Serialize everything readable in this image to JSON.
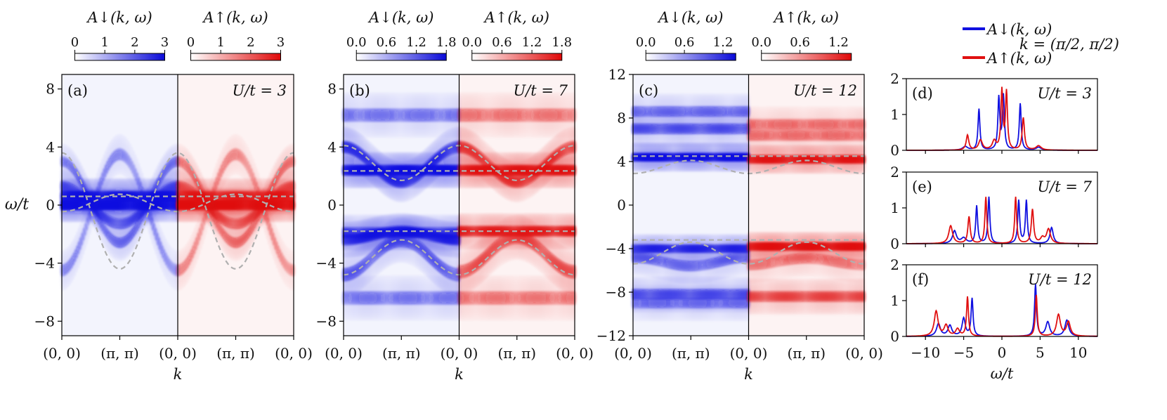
{
  "figure": {
    "ylabel": "ω/t",
    "legend_down": "A↓(k, ω)",
    "legend_up": "A↑(k, ω)",
    "k_note": "k = (π/2, π/2)",
    "colors": {
      "down": "#1010e0",
      "up": "#e01010",
      "guide": "#b0b0b0"
    }
  },
  "chart_data": [
    {
      "type": "heatmap",
      "panel": "(a)",
      "u_label": "U/t = 3",
      "U": 3,
      "xlabel": "k",
      "k_ticks": [
        "(0, 0)",
        "(π, π)",
        "(0, 0)",
        "(π, π)",
        "(0, 0)"
      ],
      "ylim": [
        -9,
        9
      ],
      "yticks": [
        -8,
        -4,
        0,
        4,
        8
      ],
      "cbar_down": {
        "title": "A↓(k, ω)",
        "range": [
          0,
          3
        ],
        "ticks": [
          "0",
          "1",
          "2",
          "3"
        ]
      },
      "cbar_up": {
        "title": "A↑(k, ω)",
        "range": [
          0,
          3
        ],
        "ticks": [
          "0",
          "1",
          "2",
          "3"
        ]
      },
      "bands_down": [
        {
          "w0": 0.6,
          "amp": 0.0,
          "width": 0.3,
          "spread": 0.22,
          "gain": 0.9
        },
        {
          "w0": 0.0,
          "amp": 0.0,
          "width": 0.28,
          "spread": 0.24,
          "gain": 1.0
        },
        {
          "w0": 0.0,
          "amp": 1.3,
          "width": 0.3,
          "spread": 0.28,
          "gain": 0.45
        },
        {
          "w0": 0.2,
          "amp": 2.8,
          "width": 0.3,
          "spread": 0.3,
          "gain": 0.35
        },
        {
          "w0": -0.5,
          "amp": -4.0,
          "width": 0.35,
          "spread": 0.35,
          "gain": 0.25
        }
      ],
      "bands_up": [
        {
          "w0": 0.6,
          "amp": 0.0,
          "width": 0.3,
          "spread": 0.22,
          "gain": 0.7
        },
        {
          "w0": 0.0,
          "amp": 0.0,
          "width": 0.28,
          "spread": 0.24,
          "gain": 1.0
        },
        {
          "w0": 0.0,
          "amp": 1.3,
          "width": 0.3,
          "spread": 0.28,
          "gain": 0.45
        },
        {
          "w0": 0.2,
          "amp": 2.8,
          "width": 0.3,
          "spread": 0.3,
          "gain": 0.35
        },
        {
          "w0": -0.5,
          "amp": -4.0,
          "width": 0.35,
          "spread": 0.35,
          "gain": 0.25
        }
      ],
      "guides": [
        {
          "w0": -0.4,
          "amp": 4.0
        },
        {
          "w0": 0.6,
          "amp": 0.0
        },
        {
          "w0": 0.15,
          "amp": -0.6
        }
      ]
    },
    {
      "type": "heatmap",
      "panel": "(b)",
      "u_label": "U/t = 7",
      "U": 7,
      "xlabel": "k",
      "k_ticks": [
        "(0, 0)",
        "(π, π)",
        "(0, 0)",
        "(π, π)",
        "(0, 0)"
      ],
      "ylim": [
        -9,
        9
      ],
      "yticks": [
        -8,
        -4,
        0,
        4,
        8
      ],
      "cbar_down": {
        "title": "A↓(k, ω)",
        "range": [
          0,
          1.8
        ],
        "ticks": [
          "0.0",
          "0.6",
          "1.2",
          "1.8"
        ]
      },
      "cbar_up": {
        "title": "A↑(k, ω)",
        "range": [
          0,
          1.8
        ],
        "ticks": [
          "0.0",
          "0.6",
          "1.2",
          "1.8"
        ]
      },
      "bands_down": [
        {
          "w0": 2.4,
          "amp": 0.0,
          "width": 0.3,
          "spread": 0.25,
          "gain": 0.95
        },
        {
          "w0": 2.8,
          "amp": 1.2,
          "width": 0.35,
          "spread": 0.3,
          "gain": 0.6
        },
        {
          "w0": -1.9,
          "amp": 0.0,
          "width": 0.3,
          "spread": 0.25,
          "gain": 0.55
        },
        {
          "w0": -2.1,
          "amp": -0.3,
          "width": 0.3,
          "spread": 0.3,
          "gain": 0.7
        },
        {
          "w0": -3.6,
          "amp": -1.2,
          "width": 0.4,
          "spread": 0.35,
          "gain": 0.4
        },
        {
          "w0": 6.2,
          "amp": 0.0,
          "width": 0.4,
          "spread": 0.4,
          "gain": 0.3
        },
        {
          "w0": -6.4,
          "amp": 0.0,
          "width": 0.4,
          "spread": 0.4,
          "gain": 0.3
        }
      ],
      "bands_up": [
        {
          "w0": 2.4,
          "amp": 0.0,
          "width": 0.3,
          "spread": 0.25,
          "gain": 0.85
        },
        {
          "w0": 2.8,
          "amp": 1.2,
          "width": 0.35,
          "spread": 0.3,
          "gain": 0.55
        },
        {
          "w0": -1.8,
          "amp": 0.0,
          "width": 0.3,
          "spread": 0.25,
          "gain": 0.75
        },
        {
          "w0": -3.4,
          "amp": -1.2,
          "width": 0.4,
          "spread": 0.35,
          "gain": 0.45
        },
        {
          "w0": 6.2,
          "amp": 0.0,
          "width": 0.4,
          "spread": 0.4,
          "gain": 0.3
        },
        {
          "w0": -6.4,
          "amp": 0.0,
          "width": 0.4,
          "spread": 0.4,
          "gain": 0.3
        }
      ],
      "guides": [
        {
          "w0": 2.9,
          "amp": 1.2
        },
        {
          "w0": 2.35,
          "amp": 0.0
        },
        {
          "w0": -1.8,
          "amp": 0.0
        },
        {
          "w0": -3.6,
          "amp": -1.2
        }
      ]
    },
    {
      "type": "heatmap",
      "panel": "(c)",
      "u_label": "U/t = 12",
      "U": 12,
      "xlabel": "k",
      "k_ticks": [
        "(0, 0)",
        "(π, π)",
        "(0, 0)",
        "(π, π)",
        "(0, 0)"
      ],
      "ylim": [
        -12,
        12
      ],
      "yticks": [
        -12,
        -8,
        -4,
        0,
        4,
        8,
        12
      ],
      "cbar_down": {
        "title": "A↓(k, ω)",
        "range": [
          0,
          1.4
        ],
        "ticks": [
          "0.0",
          "0.6",
          "1.2"
        ]
      },
      "cbar_up": {
        "title": "A↑(k, ω)",
        "range": [
          0,
          1.4
        ],
        "ticks": [
          "0.0",
          "0.6",
          "1.2"
        ]
      },
      "bands_down": [
        {
          "w0": 4.4,
          "amp": 0.0,
          "width": 0.3,
          "spread": 0.25,
          "gain": 1.0
        },
        {
          "w0": 7.0,
          "amp": 0.0,
          "width": 0.4,
          "spread": 0.4,
          "gain": 0.45
        },
        {
          "w0": 8.6,
          "amp": 0.0,
          "width": 0.4,
          "spread": 0.4,
          "gain": 0.35
        },
        {
          "w0": -4.0,
          "amp": 0.0,
          "width": 0.3,
          "spread": 0.25,
          "gain": 0.7
        },
        {
          "w0": -5.2,
          "amp": 0.4,
          "width": 0.4,
          "spread": 0.35,
          "gain": 0.35
        },
        {
          "w0": -8.2,
          "amp": 0.0,
          "width": 0.4,
          "spread": 0.4,
          "gain": 0.45
        },
        {
          "w0": -9.0,
          "amp": 0.0,
          "width": 0.4,
          "spread": 0.4,
          "gain": 0.3
        }
      ],
      "bands_up": [
        {
          "w0": 4.2,
          "amp": 0.0,
          "width": 0.3,
          "spread": 0.25,
          "gain": 0.85
        },
        {
          "w0": 6.4,
          "amp": 0.0,
          "width": 0.4,
          "spread": 0.4,
          "gain": 0.3
        },
        {
          "w0": 7.4,
          "amp": 0.0,
          "width": 0.4,
          "spread": 0.4,
          "gain": 0.3
        },
        {
          "w0": -3.8,
          "amp": 0.0,
          "width": 0.3,
          "spread": 0.25,
          "gain": 0.95
        },
        {
          "w0": -5.2,
          "amp": -0.3,
          "width": 0.4,
          "spread": 0.35,
          "gain": 0.3
        },
        {
          "w0": -8.4,
          "amp": 0.0,
          "width": 0.4,
          "spread": 0.4,
          "gain": 0.5
        }
      ],
      "guides": [
        {
          "w0": 4.5,
          "amp": 0.0
        },
        {
          "w0": 3.5,
          "amp": -0.6
        },
        {
          "w0": -3.2,
          "amp": 0.0
        },
        {
          "w0": -4.4,
          "amp": -1.0
        }
      ]
    },
    {
      "type": "line",
      "panel": "(d)",
      "u_label": "U/t = 3",
      "xlim": [
        -12.5,
        12.5
      ],
      "ylim": [
        0,
        2
      ],
      "yticks": [
        0,
        1,
        2
      ],
      "xticks": [],
      "xlabel": "",
      "series": [
        {
          "name": "A↓(k, ω)",
          "peaks": [
            [
              -3.0,
              1.15,
              0.15
            ],
            [
              -0.4,
              1.45,
              0.15
            ],
            [
              0.2,
              1.5,
              0.15
            ],
            [
              2.4,
              1.3,
              0.15
            ],
            [
              -4.8,
              0.1,
              0.4
            ],
            [
              4.8,
              0.08,
              0.4
            ]
          ]
        },
        {
          "name": "A↑(k, ω)",
          "peaks": [
            [
              -4.5,
              0.42,
              0.2
            ],
            [
              -2.8,
              0.28,
              0.3
            ],
            [
              0.0,
              1.65,
              0.15
            ],
            [
              0.6,
              1.6,
              0.15
            ],
            [
              2.8,
              0.9,
              0.18
            ],
            [
              -1.0,
              0.25,
              0.3
            ],
            [
              4.8,
              0.12,
              0.4
            ]
          ]
        }
      ]
    },
    {
      "type": "line",
      "panel": "(e)",
      "u_label": "U/t = 7",
      "xlim": [
        -12.5,
        12.5
      ],
      "ylim": [
        0,
        2
      ],
      "yticks": [
        0,
        1,
        2
      ],
      "xticks": [],
      "xlabel": "",
      "series": [
        {
          "name": "A↓(k, ω)",
          "peaks": [
            [
              -6.2,
              0.35,
              0.3
            ],
            [
              -3.3,
              1.05,
              0.15
            ],
            [
              -1.7,
              1.3,
              0.15
            ],
            [
              2.2,
              1.2,
              0.15
            ],
            [
              3.2,
              1.2,
              0.15
            ],
            [
              6.5,
              0.45,
              0.25
            ],
            [
              -5.0,
              0.15,
              0.4
            ]
          ]
        },
        {
          "name": "A↑(k, ω)",
          "peaks": [
            [
              -6.7,
              0.5,
              0.3
            ],
            [
              -4.3,
              0.75,
              0.18
            ],
            [
              -2.1,
              1.3,
              0.15
            ],
            [
              1.8,
              1.3,
              0.15
            ],
            [
              4.0,
              0.95,
              0.18
            ],
            [
              6.1,
              0.4,
              0.3
            ],
            [
              5.3,
              0.15,
              0.3
            ]
          ]
        }
      ]
    },
    {
      "type": "line",
      "panel": "(f)",
      "u_label": "U/t = 12",
      "xlim": [
        -12.5,
        12.5
      ],
      "ylim": [
        0,
        2
      ],
      "yticks": [
        0,
        1,
        2
      ],
      "xticks": [
        -10,
        -5,
        0,
        5,
        10
      ],
      "xlabel": "ω/t",
      "series": [
        {
          "name": "A↓(k, ω)",
          "peaks": [
            [
              -8.3,
              0.35,
              0.3
            ],
            [
              -6.8,
              0.3,
              0.3
            ],
            [
              -5.0,
              0.5,
              0.25
            ],
            [
              -3.9,
              1.05,
              0.15
            ],
            [
              4.4,
              1.45,
              0.15
            ],
            [
              6.0,
              0.4,
              0.3
            ],
            [
              8.5,
              0.45,
              0.3
            ]
          ]
        },
        {
          "name": "A↑(k, ω)",
          "peaks": [
            [
              -8.6,
              0.7,
              0.3
            ],
            [
              -7.3,
              0.3,
              0.3
            ],
            [
              -4.5,
              1.1,
              0.15
            ],
            [
              4.5,
              1.15,
              0.15
            ],
            [
              7.4,
              0.6,
              0.3
            ],
            [
              8.7,
              0.4,
              0.3
            ],
            [
              -5.8,
              0.2,
              0.3
            ]
          ]
        }
      ]
    }
  ]
}
